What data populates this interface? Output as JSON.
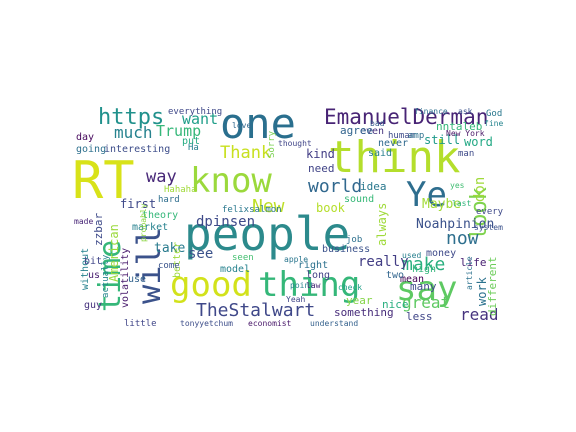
{
  "wordcloud": {
    "words": [
      {
        "text": "people",
        "color": "#2c8a8c"
      },
      {
        "text": "think",
        "color": "#b4de2c"
      },
      {
        "text": "one",
        "color": "#2a6f8e"
      },
      {
        "text": "RT",
        "color": "#d8e219"
      },
      {
        "text": "good",
        "color": "#d2e21b"
      },
      {
        "text": "thing",
        "color": "#35b779"
      },
      {
        "text": "say",
        "color": "#5ec962"
      },
      {
        "text": "know",
        "color": "#9bd93c"
      },
      {
        "text": "will",
        "color": "#3b528b"
      },
      {
        "text": "time",
        "color": "#35b779"
      },
      {
        "text": "Ye",
        "color": "#2e6e8e"
      },
      {
        "text": "EmanuelDerman",
        "color": "#482475"
      },
      {
        "text": "TheStalwart",
        "color": "#3f4889"
      },
      {
        "text": "https",
        "color": "#21918c"
      },
      {
        "text": "look",
        "color": "#7fd34e"
      },
      {
        "text": "world",
        "color": "#31688e"
      },
      {
        "text": "much",
        "color": "#26828e"
      },
      {
        "text": "Thank",
        "color": "#c8e020"
      },
      {
        "text": "New",
        "color": "#bddf26"
      },
      {
        "text": "make",
        "color": "#29af7f"
      },
      {
        "text": "Trump",
        "color": "#35b779"
      },
      {
        "text": "way",
        "color": "#482878"
      },
      {
        "text": "want",
        "color": "#1f9e89"
      },
      {
        "text": "dpinsen",
        "color": "#3e4a89"
      },
      {
        "text": "now",
        "color": "#2e6f8e"
      },
      {
        "text": "great",
        "color": "#5ec962"
      },
      {
        "text": "read",
        "color": "#46337e"
      },
      {
        "text": "see",
        "color": "#3b528b"
      },
      {
        "text": "really",
        "color": "#433e85"
      },
      {
        "text": "take",
        "color": "#297b8e"
      },
      {
        "text": "first",
        "color": "#3e4989"
      },
      {
        "text": "American",
        "color": "#9bd93c"
      },
      {
        "text": "zzbar",
        "color": "#3e4a89"
      },
      {
        "text": "without",
        "color": "#26828e"
      },
      {
        "text": "volatility",
        "color": "#481a6c"
      },
      {
        "text": "theory",
        "color": "#35b779"
      },
      {
        "text": "model",
        "color": "#26828e"
      },
      {
        "text": "kind",
        "color": "#433e85"
      },
      {
        "text": "need",
        "color": "#414487"
      },
      {
        "text": "book",
        "color": "#b5de2b"
      },
      {
        "text": "Noahpinion",
        "color": "#3b528b"
      },
      {
        "text": "don",
        "color": "#9fda3a"
      },
      {
        "text": "Maybe",
        "color": "#a2da37"
      },
      {
        "text": "money",
        "color": "#3e4989"
      },
      {
        "text": "life",
        "color": "#482173"
      },
      {
        "text": "work",
        "color": "#2c728e"
      },
      {
        "text": "different",
        "color": "#6ccd5a"
      },
      {
        "text": "still",
        "color": "#1f9a8a"
      },
      {
        "text": "nntaleb",
        "color": "#35b779"
      },
      {
        "text": "word",
        "color": "#22a884"
      },
      {
        "text": "even",
        "color": "#46327e"
      },
      {
        "text": "agree",
        "color": "#32648e"
      },
      {
        "text": "never",
        "color": "#30698e"
      },
      {
        "text": "idea",
        "color": "#2a788e"
      },
      {
        "text": "mean",
        "color": "#440154"
      },
      {
        "text": "many",
        "color": "#3f4889"
      },
      {
        "text": "something",
        "color": "#472c7a"
      },
      {
        "text": "nice",
        "color": "#29af7f"
      },
      {
        "text": "less",
        "color": "#404688"
      },
      {
        "text": "always",
        "color": "#9fda3a"
      },
      {
        "text": "two",
        "color": "#32658e"
      },
      {
        "text": "year",
        "color": "#86d549"
      },
      {
        "text": "business",
        "color": "#3b528b"
      },
      {
        "text": "sound",
        "color": "#37b878"
      },
      {
        "text": "felixsalmon",
        "color": "#2a788e"
      },
      {
        "text": "interesting",
        "color": "#3d4d8a"
      },
      {
        "text": "going",
        "color": "#2d708e"
      },
      {
        "text": "bit",
        "color": "#404588"
      },
      {
        "text": "us",
        "color": "#481d6f"
      },
      {
        "text": "use",
        "color": "#33638d"
      },
      {
        "text": "better",
        "color": "#9fda3a"
      },
      {
        "text": "market",
        "color": "#26818e"
      },
      {
        "text": "actually",
        "color": "#25848e"
      },
      {
        "text": "come",
        "color": "#3a548c"
      },
      {
        "text": "put",
        "color": "#25ac82"
      },
      {
        "text": "day",
        "color": "#46085c"
      },
      {
        "text": "everything",
        "color": "#3f4889"
      },
      {
        "text": "right",
        "color": "#2c718e"
      },
      {
        "text": "long",
        "color": "#424186"
      },
      {
        "text": "high",
        "color": "#31b57b"
      },
      {
        "text": "said",
        "color": "#277f8e"
      },
      {
        "text": "made",
        "color": "#482677"
      },
      {
        "text": "guy",
        "color": "#46327e"
      },
      {
        "text": "little",
        "color": "#404688"
      },
      {
        "text": "tonyyetchum",
        "color": "#3d4e8a"
      },
      {
        "text": "economist",
        "color": "#481769"
      },
      {
        "text": "understand",
        "color": "#34618d"
      },
      {
        "text": "apple",
        "color": "#2a768e"
      },
      {
        "text": "seen",
        "color": "#44bf70"
      },
      {
        "text": "Sorry",
        "color": "#7ad151"
      },
      {
        "text": "human",
        "color": "#3e4c8a"
      },
      {
        "text": "amp",
        "color": "#2d718e"
      },
      {
        "text": "finance",
        "color": "#2e6f8e"
      },
      {
        "text": "bad",
        "color": "#365c8d"
      },
      {
        "text": "Ha",
        "color": "#26828e"
      },
      {
        "text": "God",
        "color": "#2a788e"
      },
      {
        "text": "man",
        "color": "#3e4a89"
      },
      {
        "text": "thought",
        "color": "#404588"
      },
      {
        "text": "New York",
        "color": "#471365"
      },
      {
        "text": "article",
        "color": "#2c728e"
      },
      {
        "text": "system",
        "color": "#3b528b"
      },
      {
        "text": "hard",
        "color": "#2e6e8e"
      },
      {
        "text": "job",
        "color": "#2d708e"
      },
      {
        "text": "check",
        "color": "#1fa088"
      },
      {
        "text": "Hahaha",
        "color": "#a0da39"
      },
      {
        "text": "love",
        "color": "#31688e"
      },
      {
        "text": "ask",
        "color": "#3b528b"
      },
      {
        "text": "yes",
        "color": "#40bd72"
      },
      {
        "text": "point",
        "color": "#25848e"
      },
      {
        "text": "law",
        "color": "#482878"
      },
      {
        "text": "last",
        "color": "#31b57b"
      },
      {
        "text": "Yeah",
        "color": "#404688"
      },
      {
        "text": "every",
        "color": "#3e4989"
      },
      {
        "text": "used",
        "color": "#277f8e"
      },
      {
        "text": "fine",
        "color": "#25848e"
      },
      {
        "text": "probably",
        "color": "#8ed645"
      }
    ]
  }
}
